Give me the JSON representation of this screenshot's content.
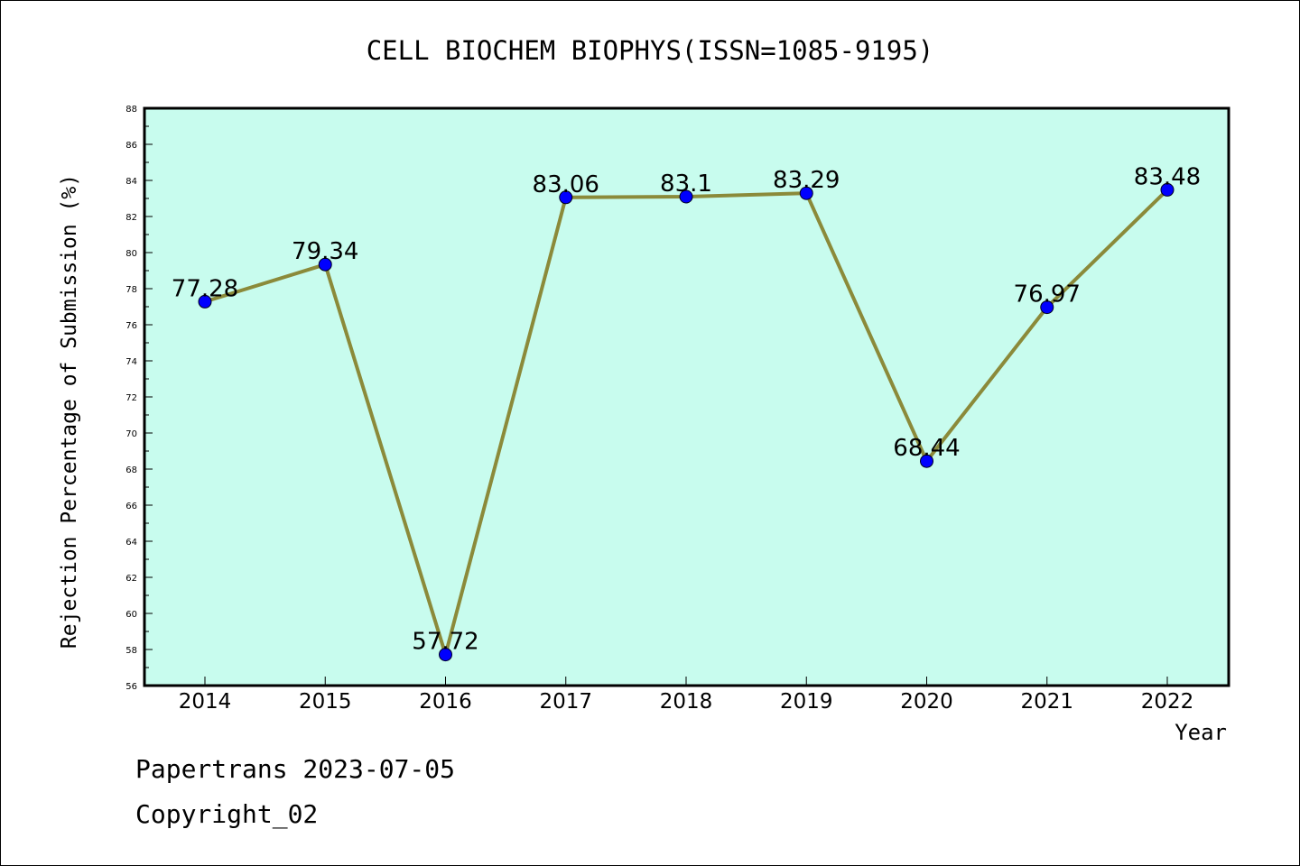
{
  "chart_data": {
    "type": "line",
    "title": "CELL BIOCHEM BIOPHYS(ISSN=1085-9195)",
    "xlabel": "Year",
    "ylabel": "Rejection Percentage of Submission (%)",
    "categories": [
      "2014",
      "2015",
      "2016",
      "2017",
      "2018",
      "2019",
      "2020",
      "2021",
      "2022"
    ],
    "values": [
      77.28,
      79.34,
      57.72,
      83.06,
      83.1,
      83.29,
      68.44,
      76.97,
      83.48
    ],
    "data_labels": [
      "77.28",
      "79.34",
      "57.72",
      "83.06",
      "83.1",
      "83.29",
      "68.44",
      "76.97",
      "83.48"
    ],
    "ylim": [
      56,
      88
    ],
    "ytick_step": 2,
    "grid": false,
    "colors": {
      "plot_background": "#c8fcee",
      "line": "#8b8a3a",
      "marker": "#0000ff"
    }
  },
  "footer": {
    "line1": "Papertrans 2023-07-05",
    "line2": "Copyright_02"
  }
}
